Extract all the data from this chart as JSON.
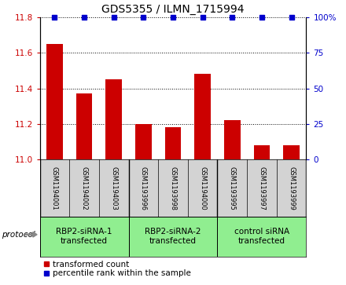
{
  "title": "GDS5355 / ILMN_1715994",
  "samples": [
    "GSM1194001",
    "GSM1194002",
    "GSM1194003",
    "GSM1193996",
    "GSM1193998",
    "GSM1194000",
    "GSM1193995",
    "GSM1193997",
    "GSM1193999"
  ],
  "bar_values": [
    11.65,
    11.37,
    11.45,
    11.2,
    11.18,
    11.48,
    11.22,
    11.08,
    11.08
  ],
  "percentile_values": [
    100,
    100,
    100,
    100,
    100,
    100,
    100,
    100,
    100
  ],
  "ylim_left": [
    11.0,
    11.8
  ],
  "ylim_right": [
    0,
    100
  ],
  "yticks_left": [
    11.0,
    11.2,
    11.4,
    11.6,
    11.8
  ],
  "yticks_right": [
    0,
    25,
    50,
    75,
    100
  ],
  "bar_color": "#cc0000",
  "percentile_color": "#0000cc",
  "groups": [
    {
      "label": "RBP2-siRNA-1\ntransfected",
      "start": 0,
      "end": 3
    },
    {
      "label": "RBP2-siRNA-2\ntransfected",
      "start": 3,
      "end": 6
    },
    {
      "label": "control siRNA\ntransfected",
      "start": 6,
      "end": 9
    }
  ],
  "group_color": "#90ee90",
  "protocol_label": "protocol",
  "bar_width": 0.55,
  "title_fontsize": 10,
  "sample_fontsize": 6,
  "group_label_fontsize": 7.5,
  "legend_fontsize": 7.5,
  "axis_fontsize": 7.5
}
